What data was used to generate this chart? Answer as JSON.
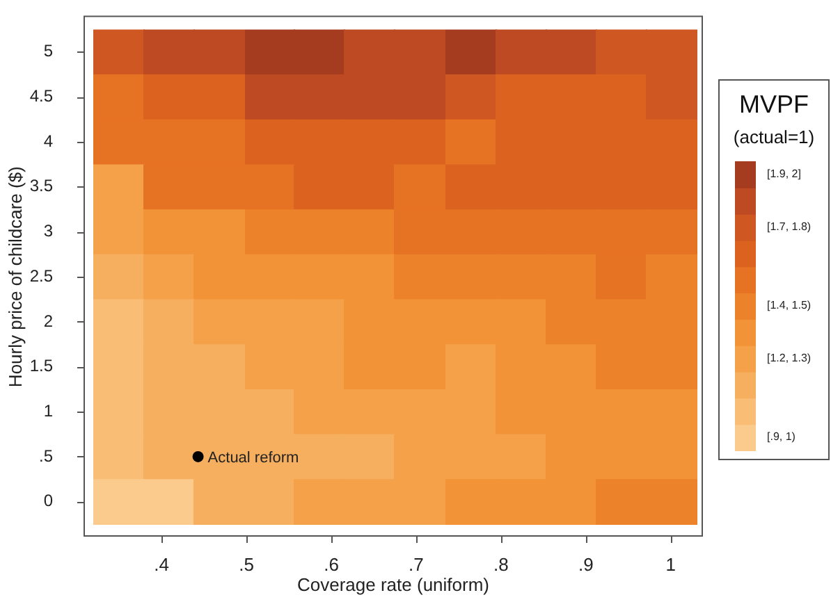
{
  "chart_data": {
    "type": "heatmap",
    "xlabel": "Coverage rate (uniform)",
    "ylabel": "Hourly price of childcare ($)",
    "legend_title": "MVPF",
    "clabel": "(actual=1)",
    "x": [
      0.349,
      0.408,
      0.467,
      0.527,
      0.586,
      0.645,
      0.704,
      0.764,
      0.823,
      0.882,
      0.941,
      1.0
    ],
    "xlim": [
      0.308,
      1.038
    ],
    "xticks": [
      {
        "value": 0.4,
        "label": ".4"
      },
      {
        "value": 0.5,
        "label": ".5"
      },
      {
        "value": 0.6,
        "label": ".6"
      },
      {
        "value": 0.7,
        "label": ".7"
      },
      {
        "value": 0.8,
        "label": ".8"
      },
      {
        "value": 0.9,
        "label": ".9"
      },
      1
    ],
    "y_categories": [
      "5",
      "4.5",
      "4",
      "3.5",
      "3",
      "2.5",
      "2",
      "1.5",
      "1",
      ".5",
      "0"
    ],
    "cells": [
      [
        1.75,
        1.85,
        1.85,
        1.95,
        1.95,
        1.85,
        1.85,
        1.95,
        1.85,
        1.85,
        1.75,
        1.75
      ],
      [
        1.55,
        1.65,
        1.65,
        1.85,
        1.85,
        1.85,
        1.85,
        1.75,
        1.65,
        1.65,
        1.65,
        1.75
      ],
      [
        1.55,
        1.55,
        1.55,
        1.65,
        1.65,
        1.65,
        1.65,
        1.55,
        1.65,
        1.65,
        1.65,
        1.65
      ],
      [
        1.25,
        1.55,
        1.55,
        1.55,
        1.65,
        1.65,
        1.55,
        1.65,
        1.65,
        1.65,
        1.65,
        1.65
      ],
      [
        1.25,
        1.35,
        1.35,
        1.45,
        1.45,
        1.45,
        1.55,
        1.55,
        1.55,
        1.55,
        1.55,
        1.55
      ],
      [
        1.15,
        1.25,
        1.35,
        1.35,
        1.35,
        1.35,
        1.45,
        1.45,
        1.45,
        1.45,
        1.55,
        1.45
      ],
      [
        1.05,
        1.15,
        1.25,
        1.25,
        1.25,
        1.35,
        1.35,
        1.35,
        1.35,
        1.45,
        1.45,
        1.45
      ],
      [
        1.05,
        1.15,
        1.15,
        1.25,
        1.25,
        1.35,
        1.35,
        1.25,
        1.35,
        1.35,
        1.45,
        1.45
      ],
      [
        1.05,
        1.15,
        1.15,
        1.15,
        1.25,
        1.25,
        1.25,
        1.25,
        1.35,
        1.35,
        1.35,
        1.35
      ],
      [
        1.05,
        1.15,
        1.15,
        1.15,
        1.15,
        1.15,
        1.25,
        1.25,
        1.25,
        1.35,
        1.35,
        1.35
      ],
      [
        0.95,
        0.95,
        1.15,
        1.15,
        1.25,
        1.25,
        1.25,
        1.35,
        1.35,
        1.35,
        1.45,
        1.45
      ]
    ],
    "colors": [
      "#fbca8d",
      "#f9bd76",
      "#f6af5f",
      "#f4a14a",
      "#f19336",
      "#ec822a",
      "#e67223",
      "#dc6220",
      "#cf5721",
      "#bd4a22",
      "#a53b1f"
    ],
    "clim": [
      0.9,
      2.0
    ],
    "cticks": [
      {
        "value": 1.95,
        "label": "[1.9, 2]"
      },
      {
        "value": 1.75,
        "label": "[1.7, 1.8)"
      },
      {
        "value": 1.45,
        "label": "[1.4, 1.5)"
      },
      {
        "value": 1.25,
        "label": "[1.2, 1.3)"
      },
      {
        "value": 0.95,
        "label": "[.9, 1)"
      }
    ],
    "annotations": [
      {
        "text": "Actual reform",
        "x": 0.443,
        "y": ".5"
      }
    ]
  }
}
